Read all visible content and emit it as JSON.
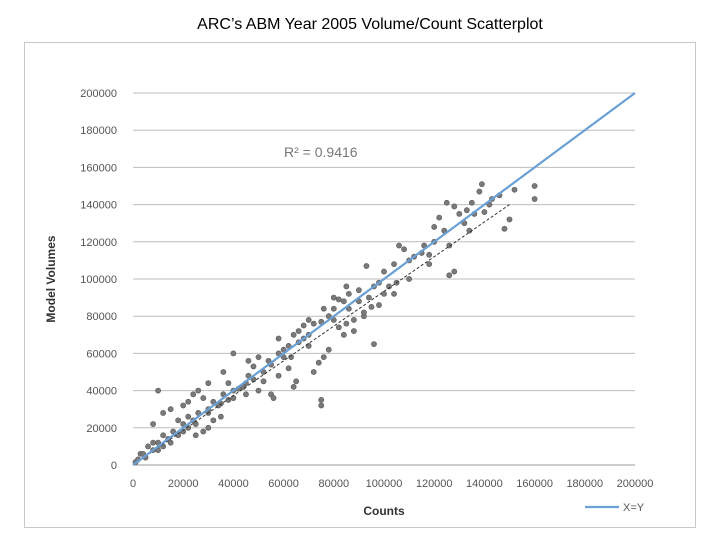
{
  "page_title": "ARC’s ABM Year 2005 Volume/Count Scatterplot",
  "colors": {
    "points": "#7a7a7a",
    "points_stroke": "#5a5a5a",
    "xy_line": "#6aa0d6",
    "trend_line": "#333333",
    "grid": "#bdbdbd"
  },
  "chart_data": {
    "type": "scatter",
    "title": "",
    "xlabel": "Counts",
    "ylabel": "Model Volumes",
    "xlim": [
      0,
      200000
    ],
    "ylim": [
      0,
      200000
    ],
    "x_ticks": [
      "0",
      "20000",
      "40000",
      "60000",
      "80000",
      "100000",
      "120000",
      "140000",
      "160000",
      "180000",
      "200000"
    ],
    "y_ticks": [
      "0",
      "20000",
      "40000",
      "60000",
      "80000",
      "100000",
      "120000",
      "140000",
      "160000",
      "180000",
      "200000"
    ],
    "grid": "horizontal",
    "legend": {
      "position": "bottom-right",
      "entries": [
        "X=Y"
      ]
    },
    "annotation": "R² = 0.9416",
    "r_squared": 0.9416,
    "reference_line": {
      "name": "X=Y",
      "from": [
        0,
        0
      ],
      "to": [
        200000,
        200000
      ]
    },
    "trend_line": {
      "from": [
        0,
        0
      ],
      "to": [
        150000,
        140000
      ]
    },
    "series": [
      {
        "points": [
          [
            160000,
            150000
          ],
          [
            160000,
            143000
          ],
          [
            150000,
            132000
          ],
          [
            148000,
            127000
          ],
          [
            143000,
            143000
          ],
          [
            139000,
            151000
          ],
          [
            138000,
            147000
          ],
          [
            135000,
            141000
          ],
          [
            133000,
            137000
          ],
          [
            130000,
            135000
          ],
          [
            128000,
            139000
          ],
          [
            125000,
            141000
          ],
          [
            122000,
            133000
          ],
          [
            120000,
            120000
          ],
          [
            118000,
            113000
          ],
          [
            115000,
            114000
          ],
          [
            128000,
            104000
          ],
          [
            126000,
            102000
          ],
          [
            110000,
            110000
          ],
          [
            108000,
            116000
          ],
          [
            106000,
            118000
          ],
          [
            104000,
            108000
          ],
          [
            100000,
            104000
          ],
          [
            98000,
            98000
          ],
          [
            93000,
            107000
          ],
          [
            90000,
            94000
          ],
          [
            85000,
            96000
          ],
          [
            82000,
            89000
          ],
          [
            80000,
            84000
          ],
          [
            78000,
            80000
          ],
          [
            75000,
            77000
          ],
          [
            72000,
            76000
          ],
          [
            70000,
            70000
          ],
          [
            68000,
            75000
          ],
          [
            66000,
            66000
          ],
          [
            63000,
            58000
          ],
          [
            62000,
            52000
          ],
          [
            60000,
            62000
          ],
          [
            58000,
            48000
          ],
          [
            55000,
            54000
          ],
          [
            52000,
            45000
          ],
          [
            48000,
            53000
          ],
          [
            45000,
            44000
          ],
          [
            42000,
            41000
          ],
          [
            40000,
            60000
          ],
          [
            38000,
            35000
          ],
          [
            35000,
            33000
          ],
          [
            30000,
            28000
          ],
          [
            28000,
            36000
          ],
          [
            25000,
            22000
          ],
          [
            22000,
            26000
          ],
          [
            20000,
            18000
          ],
          [
            18000,
            24000
          ],
          [
            15000,
            12000
          ],
          [
            12000,
            16000
          ],
          [
            10000,
            8000
          ],
          [
            8000,
            12000
          ],
          [
            5000,
            4000
          ],
          [
            3000,
            6000
          ],
          [
            1000,
            1500
          ],
          [
            85000,
            76000
          ],
          [
            88000,
            72000
          ],
          [
            92000,
            80000
          ],
          [
            95000,
            85000
          ],
          [
            96000,
            65000
          ],
          [
            78000,
            62000
          ],
          [
            76000,
            58000
          ],
          [
            74000,
            55000
          ],
          [
            72000,
            50000
          ],
          [
            75000,
            35000
          ],
          [
            75000,
            32000
          ],
          [
            70000,
            64000
          ],
          [
            65000,
            45000
          ],
          [
            64000,
            42000
          ],
          [
            50000,
            40000
          ],
          [
            55000,
            38000
          ],
          [
            56000,
            36000
          ],
          [
            45000,
            38000
          ],
          [
            40000,
            36000
          ],
          [
            35000,
            26000
          ],
          [
            32000,
            24000
          ],
          [
            30000,
            20000
          ],
          [
            28000,
            18000
          ],
          [
            25000,
            16000
          ],
          [
            20000,
            32000
          ],
          [
            22000,
            34000
          ],
          [
            15000,
            30000
          ],
          [
            12000,
            28000
          ],
          [
            10000,
            40000
          ],
          [
            8000,
            22000
          ],
          [
            100000,
            92000
          ],
          [
            102000,
            96000
          ],
          [
            105000,
            98000
          ],
          [
            112000,
            112000
          ],
          [
            116000,
            118000
          ],
          [
            120000,
            128000
          ],
          [
            124000,
            126000
          ],
          [
            132000,
            130000
          ],
          [
            136000,
            135000
          ],
          [
            142000,
            140000
          ],
          [
            146000,
            145000
          ],
          [
            152000,
            148000
          ],
          [
            86000,
            84000
          ],
          [
            84000,
            88000
          ],
          [
            90000,
            88000
          ],
          [
            94000,
            90000
          ],
          [
            96000,
            96000
          ],
          [
            80000,
            78000
          ],
          [
            82000,
            74000
          ],
          [
            68000,
            68000
          ],
          [
            66000,
            72000
          ],
          [
            62000,
            64000
          ],
          [
            60000,
            58000
          ],
          [
            58000,
            60000
          ],
          [
            54000,
            56000
          ],
          [
            52000,
            50000
          ],
          [
            48000,
            46000
          ],
          [
            46000,
            48000
          ],
          [
            44000,
            42000
          ],
          [
            40000,
            40000
          ],
          [
            38000,
            44000
          ],
          [
            36000,
            38000
          ],
          [
            34000,
            32000
          ],
          [
            32000,
            34000
          ],
          [
            30000,
            30000
          ],
          [
            26000,
            28000
          ],
          [
            24000,
            24000
          ],
          [
            22000,
            20000
          ],
          [
            20000,
            22000
          ],
          [
            18000,
            16000
          ],
          [
            16000,
            18000
          ],
          [
            14000,
            14000
          ],
          [
            12000,
            10000
          ],
          [
            10000,
            12000
          ],
          [
            8000,
            8000
          ],
          [
            6000,
            10000
          ],
          [
            4000,
            6000
          ],
          [
            2000,
            3000
          ],
          [
            36000,
            50000
          ],
          [
            30000,
            44000
          ],
          [
            26000,
            40000
          ],
          [
            24000,
            38000
          ],
          [
            46000,
            56000
          ],
          [
            50000,
            58000
          ],
          [
            58000,
            68000
          ],
          [
            64000,
            70000
          ],
          [
            70000,
            78000
          ],
          [
            76000,
            84000
          ],
          [
            80000,
            90000
          ],
          [
            86000,
            92000
          ],
          [
            140000,
            136000
          ],
          [
            134000,
            126000
          ],
          [
            126000,
            118000
          ],
          [
            118000,
            108000
          ],
          [
            110000,
            100000
          ],
          [
            104000,
            92000
          ],
          [
            98000,
            86000
          ],
          [
            92000,
            82000
          ],
          [
            88000,
            78000
          ],
          [
            84000,
            70000
          ]
        ]
      }
    ]
  }
}
